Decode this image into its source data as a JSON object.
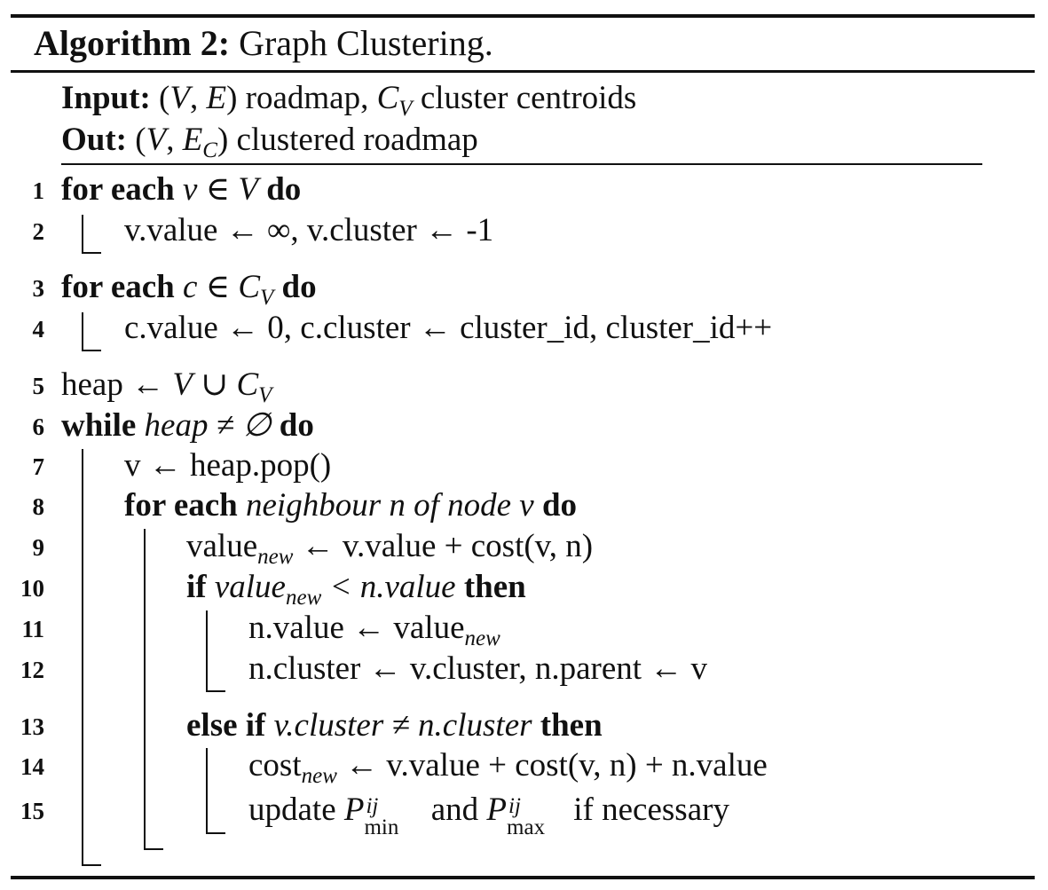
{
  "header": {
    "label": "Algorithm 2:",
    "title": "Graph Clustering."
  },
  "io": {
    "input_kw": "Input:",
    "input_text_a": "(",
    "input_V": "V",
    "input_comma": ", ",
    "input_E": "E",
    "input_text_b": ") roadmap, ",
    "input_C": "C",
    "input_C_sub": "V",
    "input_text_c": " cluster centroids",
    "out_kw": "Out:",
    "out_text_a": "(",
    "out_V": "V",
    "out_comma": ", ",
    "out_E": "E",
    "out_E_sub": "C",
    "out_text_b": ") clustered roadmap"
  },
  "lines": {
    "n1": "1",
    "n2": "2",
    "n3": "3",
    "n4": "4",
    "n5": "5",
    "n6": "6",
    "n7": "7",
    "n8": "8",
    "n9": "9",
    "n10": "10",
    "n11": "11",
    "n12": "12",
    "n13": "13",
    "n14": "14",
    "n15": "15",
    "l1_kw_a": "for each",
    "l1_var": "v",
    "l1_mid": " ∈ ",
    "l1_set": "V",
    "l1_kw_b": "do",
    "l2": "v.value ← ∞, v.cluster ← -1",
    "l3_kw_a": "for each",
    "l3_var": "c",
    "l3_mid": " ∈ ",
    "l3_set": "C",
    "l3_sub": "V",
    "l3_kw_b": "do",
    "l4": "c.value ← 0, c.cluster ← cluster_id, cluster_id++",
    "l5_a": "heap ← ",
    "l5_V": "V",
    "l5_b": " ∪ ",
    "l5_C": "C",
    "l5_sub": "V",
    "l6_kw_a": "while",
    "l6_cond": "heap ≠ ∅",
    "l6_kw_b": "do",
    "l7": "v ← heap.pop()",
    "l8_kw_a": "for each",
    "l8_cond": "neighbour n of node v",
    "l8_kw_b": "do",
    "l9_a": "value",
    "l9_sub": "new",
    "l9_b": " ← v.value + cost(v, n)",
    "l10_kw_a": "if",
    "l10_a": "value",
    "l10_sub": "new",
    "l10_b": " < n.value",
    "l10_kw_b": "then",
    "l11_a": "n.value ← value",
    "l11_sub": "new",
    "l12": "n.cluster ← v.cluster, n.parent ← v",
    "l13_kw_a": "else if",
    "l13_cond": "v.cluster ≠ n.cluster",
    "l13_kw_b": "then",
    "l14_a": "cost",
    "l14_sub": "new",
    "l14_b": " ← v.value + cost(v, n) + n.value",
    "l15_a": "update ",
    "l15_P1": "P",
    "l15_sup1": "ij",
    "l15_sub1": "min",
    "l15_and": " and ",
    "l15_P2": "P",
    "l15_sup2": "ij",
    "l15_sub2": "max",
    "l15_b": " if necessary"
  }
}
